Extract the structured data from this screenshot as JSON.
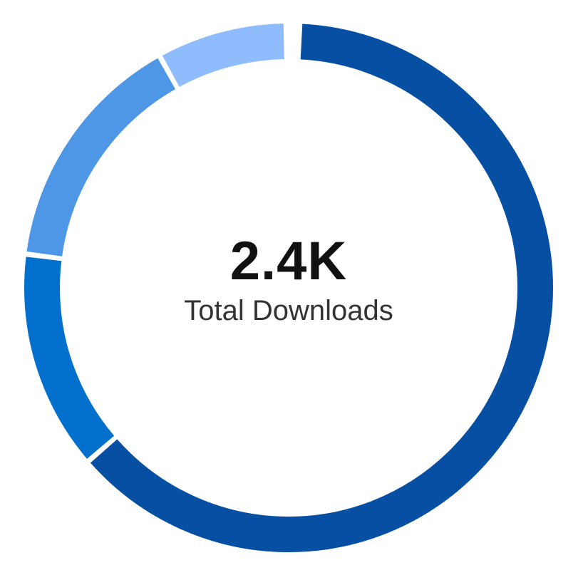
{
  "chart_data": {
    "type": "pie",
    "donut": true,
    "center_value": "2.4K",
    "center_label": "Total Downloads",
    "slices": [
      {
        "value": 63.5,
        "color": "#064fa3"
      },
      {
        "value": 13.5,
        "color": "#0270cc"
      },
      {
        "value": 15.0,
        "color": "#4d97e6"
      },
      {
        "value": 8.0,
        "color": "#8ebcfc"
      }
    ]
  }
}
